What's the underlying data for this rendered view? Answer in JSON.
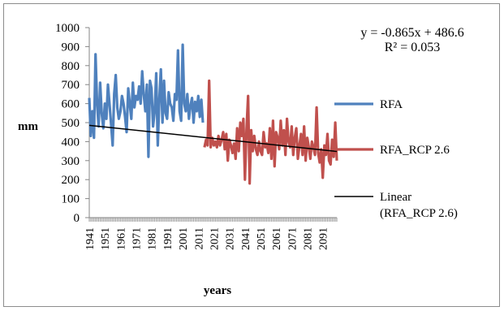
{
  "chart_data": {
    "type": "line",
    "title": "",
    "xlabel": "years",
    "ylabel": "mm",
    "ylim": [
      0,
      1000
    ],
    "yticks": [
      0,
      100,
      200,
      300,
      400,
      500,
      600,
      700,
      800,
      900,
      1000
    ],
    "xlim": [
      1941,
      2100
    ],
    "xticks": [
      1941,
      1951,
      1961,
      1971,
      1981,
      1991,
      2001,
      2011,
      2021,
      2031,
      2041,
      2051,
      2061,
      2071,
      2081,
      2091
    ],
    "grid": false,
    "legend_position": "right",
    "series": [
      {
        "name": "RFA",
        "color": "#4f81bd",
        "x": [
          1941,
          1942,
          1943,
          1944,
          1945,
          1946,
          1947,
          1948,
          1949,
          1950,
          1951,
          1952,
          1953,
          1954,
          1955,
          1956,
          1957,
          1958,
          1959,
          1960,
          1961,
          1962,
          1963,
          1964,
          1965,
          1966,
          1967,
          1968,
          1969,
          1970,
          1971,
          1972,
          1973,
          1974,
          1975,
          1976,
          1977,
          1978,
          1979,
          1980,
          1981,
          1982,
          1983,
          1984,
          1985,
          1986,
          1987,
          1988,
          1989,
          1990,
          1991,
          1992,
          1993,
          1994,
          1995,
          1996,
          1997,
          1998,
          1999,
          2000,
          2001,
          2002,
          2003,
          2004,
          2005,
          2006,
          2007,
          2008,
          2009,
          2010,
          2011,
          2012,
          2013,
          2014
        ],
        "values": [
          630,
          430,
          560,
          420,
          860,
          600,
          480,
          710,
          550,
          470,
          600,
          520,
          700,
          600,
          490,
          380,
          650,
          750,
          580,
          520,
          560,
          640,
          600,
          530,
          450,
          680,
          600,
          520,
          710,
          580,
          640,
          620,
          690,
          600,
          770,
          650,
          560,
          700,
          320,
          720,
          680,
          480,
          560,
          760,
          380,
          620,
          780,
          500,
          720,
          550,
          520,
          660,
          600,
          580,
          510,
          650,
          620,
          880,
          560,
          510,
          910,
          600,
          560,
          650,
          520,
          590,
          630,
          500,
          610,
          560,
          640,
          530,
          620,
          500
        ]
      },
      {
        "name": "RFA_RCP 2.6",
        "color": "#c0504d",
        "x": [
          2015,
          2016,
          2017,
          2018,
          2019,
          2020,
          2021,
          2022,
          2023,
          2024,
          2025,
          2026,
          2027,
          2028,
          2029,
          2030,
          2031,
          2032,
          2033,
          2034,
          2035,
          2036,
          2037,
          2038,
          2039,
          2040,
          2041,
          2042,
          2043,
          2044,
          2045,
          2046,
          2047,
          2048,
          2049,
          2050,
          2051,
          2052,
          2053,
          2054,
          2055,
          2056,
          2057,
          2058,
          2059,
          2060,
          2061,
          2062,
          2063,
          2064,
          2065,
          2066,
          2067,
          2068,
          2069,
          2070,
          2071,
          2072,
          2073,
          2074,
          2075,
          2076,
          2077,
          2078,
          2079,
          2080,
          2081,
          2082,
          2083,
          2084,
          2085,
          2086,
          2087,
          2088,
          2089,
          2090,
          2091,
          2092,
          2093,
          2094,
          2095,
          2096,
          2097,
          2098,
          2099,
          2100
        ],
        "values": [
          370,
          410,
          380,
          720,
          370,
          420,
          380,
          400,
          370,
          430,
          380,
          410,
          450,
          360,
          440,
          300,
          410,
          380,
          340,
          390,
          310,
          470,
          350,
          500,
          430,
          520,
          200,
          460,
          640,
          180,
          460,
          350,
          430,
          360,
          330,
          400,
          350,
          330,
          450,
          370,
          390,
          340,
          470,
          310,
          510,
          270,
          450,
          420,
          360,
          510,
          380,
          460,
          330,
          520,
          400,
          370,
          480,
          330,
          420,
          470,
          310,
          380,
          440,
          330,
          480,
          300,
          420,
          370,
          310,
          400,
          370,
          330,
          580,
          340,
          290,
          360,
          210,
          380,
          330,
          440,
          300,
          280,
          410,
          320,
          500,
          300
        ]
      }
    ],
    "trendline": {
      "name": "Linear\n(RFA_RCP 2.6)",
      "color": "#000000",
      "equation": "y = -0.865x + 486.6",
      "r_squared": "R² = 0.053",
      "slope": -0.865,
      "intercept": 486.6
    }
  }
}
